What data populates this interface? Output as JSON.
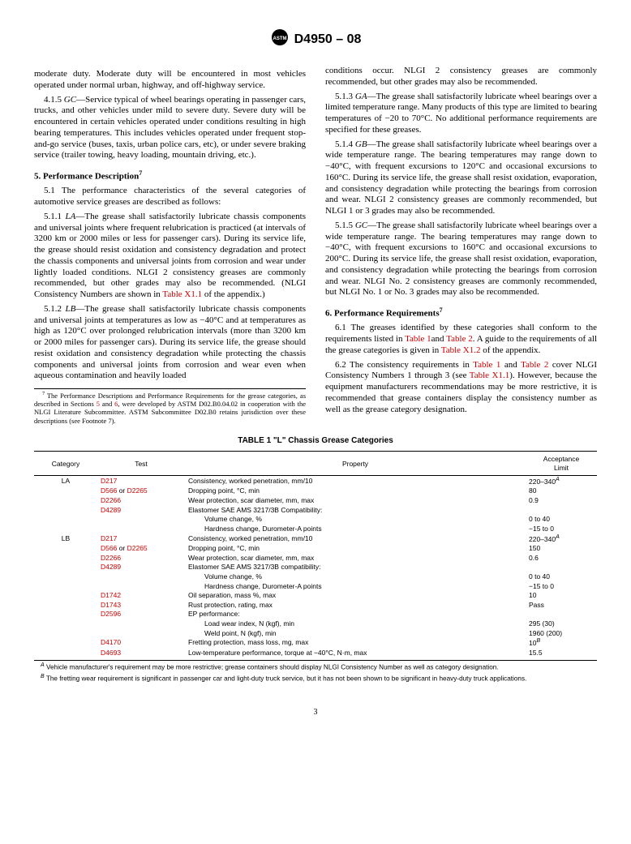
{
  "doc_header": "D4950 – 08",
  "col1": {
    "p0": "moderate duty. Moderate duty will be encountered in most vehicles operated under normal urban, highway, and off-highway service.",
    "p415_label": "4.1.5",
    "p415_code": "GC",
    "p415": "—Service typical of wheel bearings operating in passenger cars, trucks, and other vehicles under mild to severe duty. Severe duty will be encountered in certain vehicles operated under conditions resulting in high bearing temperatures. This includes vehicles operated under frequent stop-and-go service (buses, taxis, urban police cars, etc), or under severe braking service (trailer towing, heavy loading, mountain driving, etc.).",
    "h5": "5. Performance Description",
    "p51": "5.1 The performance characteristics of the several categories of automotive service greases are described as follows:",
    "p511_label": "5.1.1",
    "p511_code": "LA",
    "p511_a": "—The grease shall satisfactorily lubricate chassis components and universal joints where frequent relubrication is practiced (at intervals of 3200 km or 2000 miles or less for passenger cars). During its service life, the grease should resist oxidation and consistency degradation and protect the chassis components and universal joints from corrosion and wear under lightly loaded conditions. NLGI 2 consistency greases are commonly recommended, but other grades may also be recommended. (NLGI Consistency Numbers are shown in ",
    "p511_link": "Table X1.1",
    "p511_b": " of the appendix.)",
    "p512_label": "5.1.2",
    "p512_code": "LB",
    "p512": "—The grease shall satisfactorily lubricate chassis components and universal joints at temperatures as low as −40°C and at temperatures as high as 120°C over prolonged relubrication intervals (more than 3200 km or 2000 miles for passenger cars). During its service life, the grease should resist oxidation and consistency degradation while protecting the chassis components and universal joints from corrosion and wear even when aqueous contamination and heavily loaded",
    "fn7_a": "The Performance Descriptions and Performance Requirements for the grease categories, as described in Sections ",
    "fn7_b": " and ",
    "fn7_c": ", were developed by ASTM D02.B0.04.02 in cooperation with the NLGI Literature Subcommittee. ASTM Subcommittee D02.B0 retains jurisdiction over these descriptions (see Footnote 7).",
    "fn7_l1": "5",
    "fn7_l2": "6"
  },
  "col2": {
    "p0": "conditions occur. NLGI 2 consistency greases are commonly recommended, but other grades may also be recommended.",
    "p513_label": "5.1.3",
    "p513_code": "GA",
    "p513": "—The grease shall satisfactorily lubricate wheel bearings over a limited temperature range. Many products of this type are limited to bearing temperatures of −20 to 70°C. No additional performance requirements are specified for these greases.",
    "p514_label": "5.1.4",
    "p514_code": "GB",
    "p514": "—The grease shall satisfactorily lubricate wheel bearings over a wide temperature range. The bearing temperatures may range down to −40°C, with frequent excursions to 120°C and occasional excursions to 160°C. During its service life, the grease shall resist oxidation, evaporation, and consistency degradation while protecting the bearings from corrosion and wear. NLGI 2 consistency greases are commonly recommended, but NLGI 1 or 3 grades may also be recommended.",
    "p515_label": "5.1.5",
    "p515_code": "GC",
    "p515": "—The grease shall satisfactorily lubricate wheel bearings over a wide temperature range. The bearing temperatures may range down to −40°C, with frequent excursions to 160°C and occasional excursions to 200°C. During its service life, the grease shall resist oxidation, evaporation, and consistency degradation while protecting the bearings from corrosion and wear. NLGI No. 2 consistency greases are commonly recommended, but NLGI No. 1 or No. 3 grades may also be recommended.",
    "h6": "6. Performance Requirements",
    "p61_a": "6.1 The greases identified by these categories shall conform to the requirements listed in ",
    "p61_t1": "Table 1",
    "p61_b": "and ",
    "p61_t2": "Table 2",
    "p61_c": ". A guide to the requirements of all the grease categories is given in ",
    "p61_t3": "Table X1.2",
    "p61_d": " of the appendix.",
    "p62_a": "6.2 The consistency requirements in ",
    "p62_t1": "Table 1",
    "p62_b": " and ",
    "p62_t2": "Table 2",
    "p62_c": " cover NLGI Consistency Numbers 1 through 3 (see ",
    "p62_t3": "Table X1.1",
    "p62_d": "). However, because the equipment manufacturers recommendations may be more restrictive, it is recommended that grease containers display the consistency number as well as the grease category designation."
  },
  "table1": {
    "caption": "TABLE 1 \"L\" Chassis Grease Categories",
    "headers": {
      "cat": "Category",
      "test": "Test",
      "prop": "Property",
      "acc": "Acceptance\nLimit"
    },
    "sup7": "7",
    "supA": "A",
    "supB": "B",
    "rows": [
      {
        "cat": "LA",
        "test": "D217",
        "link": true,
        "prop": "Consistency, worked penetration, mm/10",
        "acc": "220–340",
        "acc_sup": "A"
      },
      {
        "cat": "",
        "test": "D566 or D2265",
        "link": true,
        "prop": "Dropping point, °C, min",
        "acc": "80"
      },
      {
        "cat": "",
        "test": "D2266",
        "link": true,
        "prop": "Wear protection, scar diameter, mm, max",
        "acc": "0.9"
      },
      {
        "cat": "",
        "test": "D4289",
        "link": true,
        "prop": "Elastomer SAE AMS 3217/3B Compatibility:",
        "acc": ""
      },
      {
        "cat": "",
        "test": "",
        "prop": "Volume change, %",
        "indent": true,
        "acc": "0 to 40"
      },
      {
        "cat": "",
        "test": "",
        "prop": "Hardness change, Durometer-A points",
        "indent": true,
        "acc": "−15 to 0"
      },
      {
        "cat": "LB",
        "test": "D217",
        "link": true,
        "prop": "Consistency, worked penetration, mm/10",
        "acc": "220–340",
        "acc_sup": "A"
      },
      {
        "cat": "",
        "test": "D566 or D2265",
        "link": true,
        "prop": "Dropping point, °C, min",
        "acc": "150"
      },
      {
        "cat": "",
        "test": "D2266",
        "link": true,
        "prop": "Wear protection, scar diameter, mm, max",
        "acc": "0.6"
      },
      {
        "cat": "",
        "test": "D4289",
        "link": true,
        "prop": "Elastomer SAE AMS 3217/3B compatibility:",
        "acc": ""
      },
      {
        "cat": "",
        "test": "",
        "prop": "Volume change, %",
        "indent": true,
        "acc": "0 to 40"
      },
      {
        "cat": "",
        "test": "",
        "prop": "Hardness change, Durometer-A points",
        "indent": true,
        "acc": "−15 to 0"
      },
      {
        "cat": "",
        "test": "D1742",
        "link": true,
        "prop": "Oil separation, mass %, max",
        "acc": "10"
      },
      {
        "cat": "",
        "test": "D1743",
        "link": true,
        "prop": "Rust protection, rating, max",
        "acc": "Pass"
      },
      {
        "cat": "",
        "test": "D2596",
        "link": true,
        "prop": "EP performance:",
        "acc": ""
      },
      {
        "cat": "",
        "test": "",
        "prop": "Load wear index, N (kgf), min",
        "indent": true,
        "acc": "295 (30)"
      },
      {
        "cat": "",
        "test": "",
        "prop": "Weld point, N (kgf), min",
        "indent": true,
        "acc": "1960 (200)"
      },
      {
        "cat": "",
        "test": "D4170",
        "link": true,
        "prop": "Fretting protection, mass loss, mg, max",
        "acc": "10",
        "acc_sup": "B"
      },
      {
        "cat": "",
        "test": "D4693",
        "link": true,
        "prop": "Low-temperature performance, torque at −40°C, N·m, max",
        "acc": "15.5"
      }
    ],
    "fnA": "Vehicle manufacturer's requirement may be more restrictive; grease containers should display NLGI Consistency Number as well as category designation.",
    "fnB": "The fretting wear requirement is significant in passenger car and light-duty truck service, but it has not been shown to be significant in heavy-duty truck applications."
  },
  "pagenum": "3"
}
